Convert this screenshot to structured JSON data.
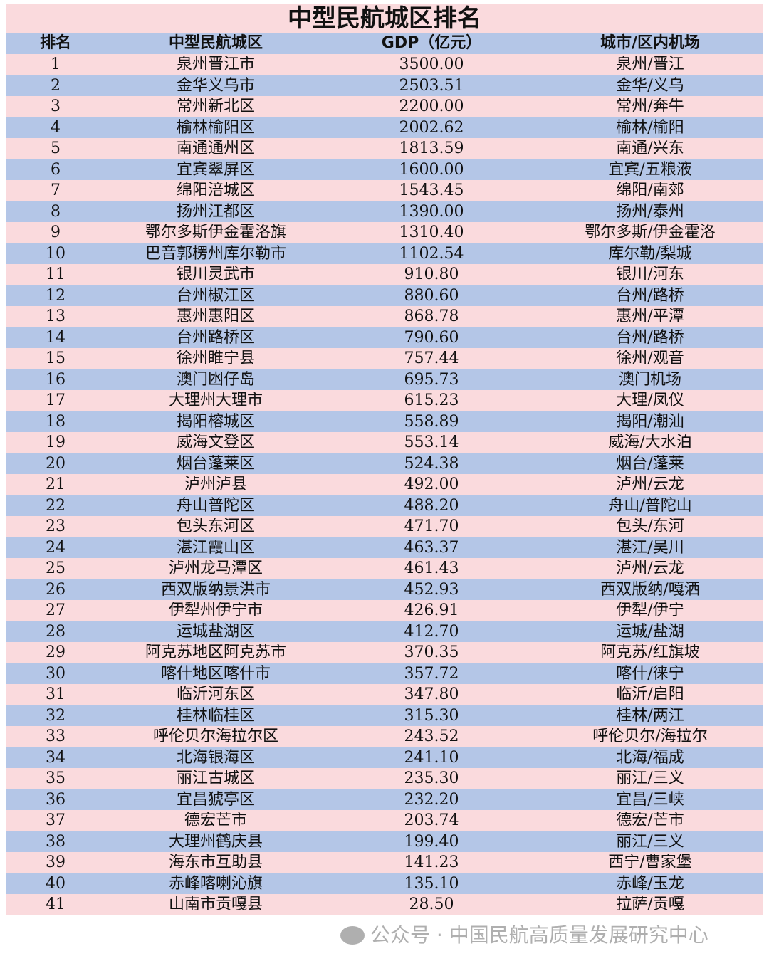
{
  "title": "中型民航城区排名",
  "headers": [
    "排名",
    "中型民航城区",
    "GDP（亿元）",
    "城市/区内机场"
  ],
  "colors": {
    "pink_row": "#fadadd",
    "blue_row": "#b4c6e7"
  },
  "watermark": "公众号 · 中国民航高质量发展研究中心",
  "rows": [
    [
      "1",
      "泉州晋江市",
      "3500.00",
      "泉州/晋江"
    ],
    [
      "2",
      "金华义乌市",
      "2503.51",
      "金华/义乌"
    ],
    [
      "3",
      "常州新北区",
      "2200.00",
      "常州/奔牛"
    ],
    [
      "4",
      "榆林榆阳区",
      "2002.62",
      "榆林/榆阳"
    ],
    [
      "5",
      "南通通州区",
      "1813.59",
      "南通/兴东"
    ],
    [
      "6",
      "宜宾翠屏区",
      "1600.00",
      "宜宾/五粮液"
    ],
    [
      "7",
      "绵阳涪城区",
      "1543.45",
      "绵阳/南郊"
    ],
    [
      "8",
      "扬州江都区",
      "1390.00",
      "扬州/泰州"
    ],
    [
      "9",
      "鄂尔多斯伊金霍洛旗",
      "1310.40",
      "鄂尔多斯/伊金霍洛"
    ],
    [
      "10",
      "巴音郭楞州库尔勒市",
      "1102.54",
      "库尔勒/梨城"
    ],
    [
      "11",
      "银川灵武市",
      "910.80",
      "银川/河东"
    ],
    [
      "12",
      "台州椒江区",
      "880.60",
      "台州/路桥"
    ],
    [
      "13",
      "惠州惠阳区",
      "868.78",
      "惠州/平潭"
    ],
    [
      "14",
      "台州路桥区",
      "790.60",
      "台州/路桥"
    ],
    [
      "15",
      "徐州睢宁县",
      "757.44",
      "徐州/观音"
    ],
    [
      "16",
      "澳门凼仔岛",
      "695.73",
      "澳门机场"
    ],
    [
      "17",
      "大理州大理市",
      "615.23",
      "大理/凤仪"
    ],
    [
      "18",
      "揭阳榕城区",
      "558.89",
      "揭阳/潮汕"
    ],
    [
      "19",
      "威海文登区",
      "553.14",
      "威海/大水泊"
    ],
    [
      "20",
      "烟台蓬莱区",
      "524.38",
      "烟台/蓬莱"
    ],
    [
      "21",
      "泸州泸县",
      "492.00",
      "泸州/云龙"
    ],
    [
      "22",
      "舟山普陀区",
      "488.20",
      "舟山/普陀山"
    ],
    [
      "23",
      "包头东河区",
      "471.70",
      "包头/东河"
    ],
    [
      "24",
      "湛江霞山区",
      "463.37",
      "湛江/吴川"
    ],
    [
      "25",
      "泸州龙马潭区",
      "461.43",
      "泸州/云龙"
    ],
    [
      "26",
      "西双版纳景洪市",
      "452.93",
      "西双版纳/嘎洒"
    ],
    [
      "27",
      "伊犁州伊宁市",
      "426.91",
      "伊犁/伊宁"
    ],
    [
      "28",
      "运城盐湖区",
      "412.70",
      "运城/盐湖"
    ],
    [
      "29",
      "阿克苏地区阿克苏市",
      "370.35",
      "阿克苏/红旗坡"
    ],
    [
      "30",
      "喀什地区喀什市",
      "357.72",
      "喀什/徕宁"
    ],
    [
      "31",
      "临沂河东区",
      "347.80",
      "临沂/启阳"
    ],
    [
      "32",
      "桂林临桂区",
      "315.30",
      "桂林/两江"
    ],
    [
      "33",
      "呼伦贝尔海拉尔区",
      "243.52",
      "呼伦贝尔/海拉尔"
    ],
    [
      "34",
      "北海银海区",
      "241.10",
      "北海/福成"
    ],
    [
      "35",
      "丽江古城区",
      "235.30",
      "丽江/三义"
    ],
    [
      "36",
      "宜昌猇亭区",
      "232.20",
      "宜昌/三峡"
    ],
    [
      "37",
      "德宏芒市",
      "203.74",
      "德宏/芒市"
    ],
    [
      "38",
      "大理州鹤庆县",
      "199.40",
      "丽江/三义"
    ],
    [
      "39",
      "海东市互助县",
      "141.23",
      "西宁/曹家堡"
    ],
    [
      "40",
      "赤峰喀喇沁旗",
      "135.10",
      "赤峰/玉龙"
    ],
    [
      "41",
      "山南市贡嘎县",
      "28.50",
      "拉萨/贡嘎"
    ]
  ]
}
